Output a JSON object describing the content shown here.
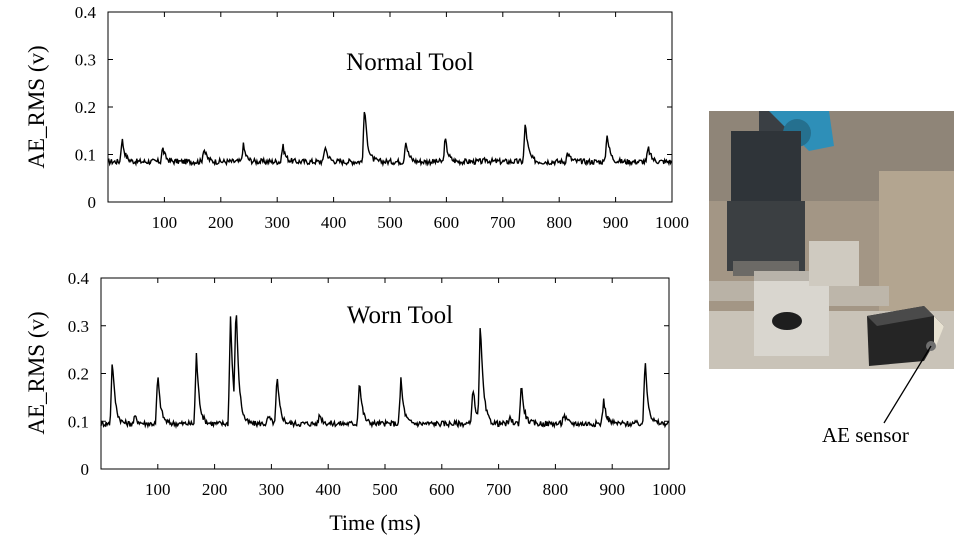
{
  "chart_data": [
    {
      "type": "line",
      "annotation": "Normal Tool",
      "ylabel": "AE_RMS (v)",
      "xlabel": "",
      "xlim": [
        0,
        1000
      ],
      "ylim": [
        0,
        0.4
      ],
      "x_ticks": [
        "100",
        "200",
        "300",
        "400",
        "500",
        "600",
        "700",
        "800",
        "900",
        "1000"
      ],
      "y_ticks": [
        "0",
        "0.1",
        "0.2",
        "0.3",
        "0.4"
      ],
      "grid": false,
      "baseline": 0.085,
      "peaks": [
        {
          "x": 25,
          "y": 0.135
        },
        {
          "x": 97,
          "y": 0.115
        },
        {
          "x": 170,
          "y": 0.115
        },
        {
          "x": 240,
          "y": 0.12
        },
        {
          "x": 310,
          "y": 0.12
        },
        {
          "x": 385,
          "y": 0.12
        },
        {
          "x": 455,
          "y": 0.205
        },
        {
          "x": 528,
          "y": 0.13
        },
        {
          "x": 598,
          "y": 0.135
        },
        {
          "x": 670,
          "y": 0.09
        },
        {
          "x": 740,
          "y": 0.17
        },
        {
          "x": 815,
          "y": 0.105
        },
        {
          "x": 885,
          "y": 0.145
        },
        {
          "x": 958,
          "y": 0.115
        }
      ]
    },
    {
      "type": "line",
      "annotation": "Worn Tool",
      "ylabel": "AE_RMS (v)",
      "xlabel": "Time (ms)",
      "xlim": [
        0,
        1000
      ],
      "ylim": [
        0,
        0.4
      ],
      "x_ticks": [
        "100",
        "200",
        "300",
        "400",
        "500",
        "600",
        "700",
        "800",
        "900",
        "1000"
      ],
      "y_ticks": [
        "0",
        "0.1",
        "0.2",
        "0.3",
        "0.4"
      ],
      "grid": false,
      "baseline": 0.095,
      "peaks": [
        {
          "x": 20,
          "y": 0.235
        },
        {
          "x": 60,
          "y": 0.11
        },
        {
          "x": 100,
          "y": 0.2
        },
        {
          "x": 168,
          "y": 0.245
        },
        {
          "x": 228,
          "y": 0.325
        },
        {
          "x": 238,
          "y": 0.32
        },
        {
          "x": 295,
          "y": 0.11
        },
        {
          "x": 310,
          "y": 0.195
        },
        {
          "x": 385,
          "y": 0.115
        },
        {
          "x": 455,
          "y": 0.19
        },
        {
          "x": 528,
          "y": 0.19
        },
        {
          "x": 655,
          "y": 0.175
        },
        {
          "x": 668,
          "y": 0.31
        },
        {
          "x": 720,
          "y": 0.105
        },
        {
          "x": 740,
          "y": 0.18
        },
        {
          "x": 815,
          "y": 0.115
        },
        {
          "x": 885,
          "y": 0.145
        },
        {
          "x": 958,
          "y": 0.235
        }
      ]
    }
  ],
  "photo": {
    "label": "AE sensor",
    "colors": {
      "background": "#9c8f80",
      "spindle": "#2f3a3f",
      "coolant": "#2e8fb8",
      "block": "#d8d4cc",
      "sensor": "#2a2a2a"
    }
  }
}
